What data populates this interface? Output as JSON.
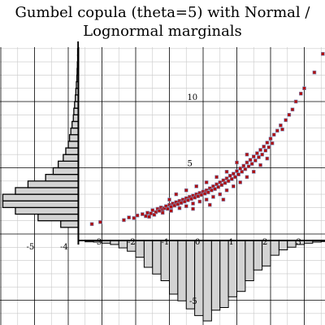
{
  "title_lines": [
    "Gumbel copula (theta=5) with Normal /",
    "Lognormal marginals"
  ],
  "chart_data": {
    "type": "scatter",
    "title": "Gumbel copula (theta=5) with Normal / Lognormal marginals",
    "xlabel": "",
    "ylabel": "",
    "xlim": [
      -5.9,
      4.0
    ],
    "ylim": [
      -6.5,
      14.5
    ],
    "grid": true,
    "x_tick_labels": [
      "-5",
      "-4",
      "-3",
      "-2",
      "-1",
      "0",
      "1",
      "2",
      "3"
    ],
    "y_tick_labels": [
      "5",
      "10"
    ],
    "margin_y_tick_label": "-5",
    "series": [
      {
        "kind": "scatter",
        "marker_fill": "#b01010",
        "marker_stroke": "#7a8fbf",
        "points": [
          [
            -3.3,
            0.75
          ],
          [
            -3.05,
            0.9
          ],
          [
            -2.35,
            1.05
          ],
          [
            -2.2,
            1.25
          ],
          [
            -2.05,
            1.2
          ],
          [
            -1.95,
            1.4
          ],
          [
            -1.8,
            1.5
          ],
          [
            -1.7,
            1.35
          ],
          [
            -1.65,
            1.6
          ],
          [
            -1.55,
            1.55
          ],
          [
            -1.5,
            1.8
          ],
          [
            -1.4,
            1.65
          ],
          [
            -1.35,
            1.9
          ],
          [
            -1.3,
            1.75
          ],
          [
            -1.25,
            2.0
          ],
          [
            -1.2,
            1.85
          ],
          [
            -1.15,
            1.95
          ],
          [
            -1.1,
            2.1
          ],
          [
            -1.05,
            1.9
          ],
          [
            -1.0,
            2.2
          ],
          [
            -0.95,
            2.05
          ],
          [
            -0.9,
            2.3
          ],
          [
            -0.85,
            2.15
          ],
          [
            -0.8,
            2.4
          ],
          [
            -0.75,
            2.25
          ],
          [
            -0.7,
            2.5
          ],
          [
            -0.65,
            2.35
          ],
          [
            -0.6,
            2.6
          ],
          [
            -0.55,
            2.45
          ],
          [
            -0.5,
            2.7
          ],
          [
            -0.45,
            2.55
          ],
          [
            -0.4,
            2.8
          ],
          [
            -0.35,
            2.65
          ],
          [
            -0.3,
            2.9
          ],
          [
            -0.25,
            2.75
          ],
          [
            -0.2,
            3.0
          ],
          [
            -0.15,
            2.85
          ],
          [
            -0.1,
            3.1
          ],
          [
            -0.05,
            2.95
          ],
          [
            0.0,
            3.2
          ],
          [
            0.05,
            3.05
          ],
          [
            0.1,
            3.3
          ],
          [
            0.15,
            3.15
          ],
          [
            0.2,
            3.45
          ],
          [
            0.25,
            3.3
          ],
          [
            0.3,
            3.6
          ],
          [
            0.35,
            3.4
          ],
          [
            0.4,
            3.75
          ],
          [
            0.45,
            3.55
          ],
          [
            0.5,
            3.9
          ],
          [
            0.55,
            3.7
          ],
          [
            0.6,
            4.05
          ],
          [
            0.65,
            3.85
          ],
          [
            0.7,
            4.2
          ],
          [
            0.75,
            4.0
          ],
          [
            0.8,
            4.4
          ],
          [
            0.85,
            4.15
          ],
          [
            0.9,
            4.55
          ],
          [
            0.95,
            4.3
          ],
          [
            1.0,
            4.75
          ],
          [
            1.05,
            4.5
          ],
          [
            1.1,
            4.95
          ],
          [
            1.15,
            4.7
          ],
          [
            1.2,
            5.15
          ],
          [
            1.25,
            4.9
          ],
          [
            1.3,
            5.4
          ],
          [
            1.35,
            5.1
          ],
          [
            1.4,
            5.6
          ],
          [
            1.45,
            5.3
          ],
          [
            1.5,
            5.85
          ],
          [
            1.55,
            5.55
          ],
          [
            1.6,
            6.1
          ],
          [
            1.65,
            5.8
          ],
          [
            1.7,
            6.35
          ],
          [
            1.75,
            6.0
          ],
          [
            1.8,
            6.6
          ],
          [
            1.85,
            6.3
          ],
          [
            1.9,
            6.9
          ],
          [
            1.95,
            6.55
          ],
          [
            2.0,
            7.2
          ],
          [
            2.05,
            6.85
          ],
          [
            2.1,
            7.5
          ],
          [
            2.2,
            7.8
          ],
          [
            2.3,
            8.2
          ],
          [
            2.35,
            7.9
          ],
          [
            2.45,
            8.6
          ],
          [
            2.55,
            9.0
          ],
          [
            2.65,
            9.4
          ],
          [
            2.75,
            10.0
          ],
          [
            2.9,
            10.6
          ],
          [
            3.0,
            11.0
          ],
          [
            3.3,
            12.2
          ],
          [
            3.55,
            13.6
          ],
          [
            3.85,
            14.1
          ],
          [
            -1.6,
            1.3
          ],
          [
            -1.45,
            1.45
          ],
          [
            -1.2,
            1.6
          ],
          [
            -0.95,
            1.75
          ],
          [
            -0.7,
            1.95
          ],
          [
            -0.5,
            2.1
          ],
          [
            -0.3,
            2.3
          ],
          [
            -0.1,
            2.45
          ],
          [
            0.1,
            2.6
          ],
          [
            0.3,
            2.8
          ],
          [
            0.5,
            3.0
          ],
          [
            0.7,
            3.3
          ],
          [
            0.9,
            3.6
          ],
          [
            1.1,
            3.9
          ],
          [
            1.3,
            4.3
          ],
          [
            1.5,
            4.7
          ],
          [
            1.7,
            5.2
          ],
          [
            1.9,
            5.7
          ],
          [
            -0.8,
            3.0
          ],
          [
            -0.5,
            3.3
          ],
          [
            -0.2,
            3.6
          ],
          [
            0.1,
            3.9
          ],
          [
            0.4,
            4.3
          ],
          [
            0.7,
            4.7
          ],
          [
            1.0,
            5.4
          ],
          [
            1.3,
            6.0
          ],
          [
            -1.0,
            2.6
          ],
          [
            0.2,
            2.2
          ],
          [
            0.6,
            2.6
          ],
          [
            -0.3,
            1.9
          ]
        ]
      },
      {
        "kind": "marginal_histogram_y",
        "bins": [
          [
            0.5,
            1.0,
            0.7
          ],
          [
            1.0,
            1.5,
            1.6
          ],
          [
            1.5,
            2.0,
            2.5
          ],
          [
            2.0,
            2.5,
            3.0
          ],
          [
            2.5,
            3.0,
            3.0
          ],
          [
            3.0,
            3.5,
            2.5
          ],
          [
            3.5,
            4.0,
            2.0
          ],
          [
            4.0,
            4.5,
            1.3
          ],
          [
            4.5,
            5.0,
            1.0
          ],
          [
            5.0,
            5.5,
            0.8
          ],
          [
            5.5,
            6.0,
            0.6
          ],
          [
            6.0,
            6.5,
            0.5
          ],
          [
            6.5,
            7.0,
            0.4
          ],
          [
            7.0,
            7.5,
            0.35
          ],
          [
            7.5,
            8.0,
            0.3
          ],
          [
            8.0,
            8.5,
            0.25
          ],
          [
            8.5,
            9.0,
            0.2
          ],
          [
            9.0,
            9.5,
            0.18
          ],
          [
            9.5,
            10.0,
            0.15
          ],
          [
            10.0,
            10.5,
            0.12
          ],
          [
            10.5,
            11.0,
            0.1
          ],
          [
            11.0,
            11.5,
            0.08
          ],
          [
            11.5,
            12.0,
            0.06
          ],
          [
            12.0,
            12.5,
            0.05
          ],
          [
            12.5,
            13.0,
            0.04
          ],
          [
            13.0,
            13.5,
            0.03
          ],
          [
            13.5,
            14.0,
            0.03
          ],
          [
            14.0,
            14.5,
            0.02
          ]
        ]
      },
      {
        "kind": "marginal_histogram_x",
        "bins": [
          [
            -3.5,
            -3.25,
            0.1
          ],
          [
            -3.25,
            -3.0,
            0.12
          ],
          [
            -3.0,
            -2.75,
            0.2
          ],
          [
            -2.75,
            -2.5,
            0.3
          ],
          [
            -2.5,
            -2.25,
            0.55
          ],
          [
            -2.25,
            -2.0,
            0.8
          ],
          [
            -2.0,
            -1.75,
            1.25
          ],
          [
            -1.75,
            -1.5,
            2.0
          ],
          [
            -1.5,
            -1.25,
            2.5
          ],
          [
            -1.25,
            -1.0,
            3.0
          ],
          [
            -1.0,
            -0.75,
            4.0
          ],
          [
            -0.75,
            -0.5,
            4.5
          ],
          [
            -0.5,
            -0.25,
            5.1
          ],
          [
            -0.25,
            0.0,
            5.6
          ],
          [
            0.0,
            0.25,
            6.0
          ],
          [
            0.25,
            0.5,
            5.2
          ],
          [
            0.5,
            0.75,
            5.0
          ],
          [
            0.75,
            1.0,
            4.2
          ],
          [
            1.0,
            1.25,
            3.8
          ],
          [
            1.25,
            1.5,
            3.0
          ],
          [
            1.5,
            1.75,
            2.2
          ],
          [
            1.75,
            2.0,
            1.9
          ],
          [
            2.0,
            2.25,
            1.1
          ],
          [
            2.25,
            2.5,
            0.7
          ],
          [
            2.5,
            2.75,
            0.5
          ],
          [
            2.75,
            3.0,
            0.3
          ],
          [
            3.0,
            3.25,
            0.2
          ],
          [
            3.25,
            3.5,
            0.12
          ],
          [
            3.5,
            3.75,
            0.08
          ],
          [
            3.75,
            4.0,
            0.05
          ]
        ]
      }
    ],
    "colors": {
      "scatter_fill": "#b01010",
      "scatter_stroke": "#7a8fbf",
      "histogram_fill": "#d3d3d3",
      "histogram_stroke": "#000000",
      "major_grid": "#000000",
      "minor_grid": "#c8c8c8"
    }
  }
}
